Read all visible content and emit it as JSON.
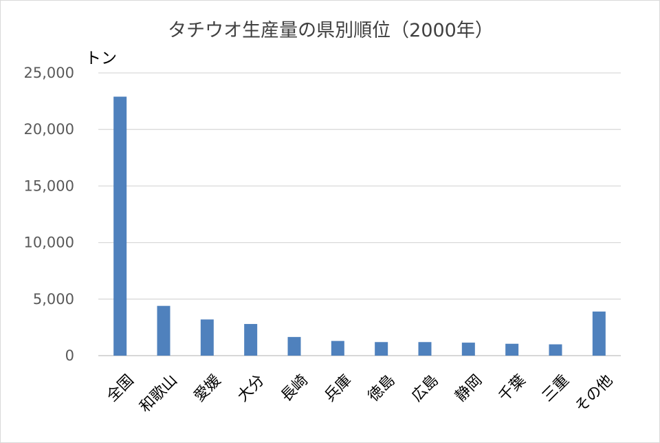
{
  "chart_data": {
    "type": "bar",
    "title": "タチウオ生産量の県別順位（2000年）",
    "ylabel": "トン",
    "xlabel": "",
    "categories": [
      "全国",
      "和歌山",
      "愛媛",
      "大分",
      "長崎",
      "兵庫",
      "徳島",
      "広島",
      "静岡",
      "千葉",
      "三重",
      "その他"
    ],
    "values": [
      22900,
      4400,
      3200,
      2800,
      1650,
      1300,
      1200,
      1200,
      1150,
      1050,
      1000,
      3900
    ],
    "ylim": [
      0,
      25000
    ],
    "yticks": [
      0,
      5000,
      10000,
      15000,
      20000,
      25000
    ],
    "ytick_labels": [
      "0",
      "5,000",
      "10,000",
      "15,000",
      "20,000",
      "25,000"
    ],
    "grid": true,
    "legend": "none",
    "bar_color": "#4f81bd"
  }
}
